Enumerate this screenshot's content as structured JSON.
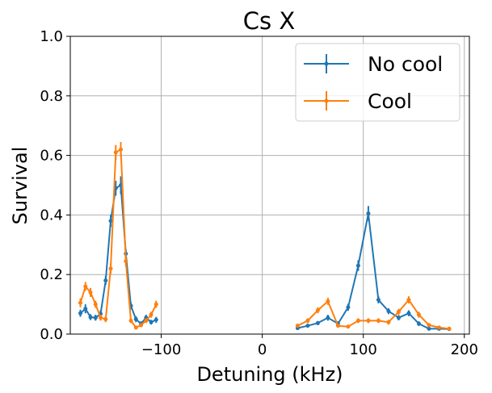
{
  "chart_data": {
    "type": "line",
    "title": "Cs X",
    "xlabel": "Detuning (kHz)",
    "ylabel": "Survival",
    "xlim": [
      -190,
      205
    ],
    "ylim": [
      0,
      1.0
    ],
    "xticks": [
      -100,
      0,
      100,
      200
    ],
    "xtick_labels": [
      "−100",
      "0",
      "100",
      "200"
    ],
    "yticks": [
      0.0,
      0.2,
      0.4,
      0.6,
      0.8,
      1.0
    ],
    "ytick_labels": [
      "0.0",
      "0.2",
      "0.4",
      "0.6",
      "0.8",
      "1.0"
    ],
    "grid": true,
    "legend_position": "top-right",
    "series": [
      {
        "name": "No cool",
        "color": "#1f77b4",
        "segments": [
          [
            {
              "x": -180,
              "y": 0.07,
              "err": 0.012
            },
            {
              "x": -175,
              "y": 0.085,
              "err": 0.015
            },
            {
              "x": -170,
              "y": 0.057,
              "err": 0.01
            },
            {
              "x": -165,
              "y": 0.055,
              "err": 0.01
            },
            {
              "x": -160,
              "y": 0.068,
              "err": 0.012
            },
            {
              "x": -155,
              "y": 0.18,
              "err": 0.015
            },
            {
              "x": -150,
              "y": 0.38,
              "err": 0.02
            },
            {
              "x": -145,
              "y": 0.49,
              "err": 0.025
            },
            {
              "x": -140,
              "y": 0.5,
              "err": 0.03
            },
            {
              "x": -135,
              "y": 0.27,
              "err": 0.015
            },
            {
              "x": -130,
              "y": 0.095,
              "err": 0.012
            },
            {
              "x": -125,
              "y": 0.05,
              "err": 0.01
            },
            {
              "x": -120,
              "y": 0.035,
              "err": 0.008
            },
            {
              "x": -115,
              "y": 0.055,
              "err": 0.01
            },
            {
              "x": -110,
              "y": 0.04,
              "err": 0.008
            },
            {
              "x": -105,
              "y": 0.048,
              "err": 0.01
            }
          ],
          [
            {
              "x": 35,
              "y": 0.02,
              "err": 0.006
            },
            {
              "x": 45,
              "y": 0.028,
              "err": 0.006
            },
            {
              "x": 55,
              "y": 0.037,
              "err": 0.007
            },
            {
              "x": 65,
              "y": 0.055,
              "err": 0.01
            },
            {
              "x": 75,
              "y": 0.035,
              "err": 0.008
            },
            {
              "x": 85,
              "y": 0.09,
              "err": 0.012
            },
            {
              "x": 95,
              "y": 0.23,
              "err": 0.018
            },
            {
              "x": 105,
              "y": 0.405,
              "err": 0.025
            },
            {
              "x": 115,
              "y": 0.115,
              "err": 0.012
            },
            {
              "x": 125,
              "y": 0.077,
              "err": 0.01
            },
            {
              "x": 135,
              "y": 0.055,
              "err": 0.009
            },
            {
              "x": 145,
              "y": 0.07,
              "err": 0.01
            },
            {
              "x": 155,
              "y": 0.035,
              "err": 0.008
            },
            {
              "x": 165,
              "y": 0.018,
              "err": 0.005
            },
            {
              "x": 175,
              "y": 0.018,
              "err": 0.005
            },
            {
              "x": 185,
              "y": 0.017,
              "err": 0.005
            }
          ]
        ]
      },
      {
        "name": "Cool",
        "color": "#ff7f0e",
        "segments": [
          [
            {
              "x": -180,
              "y": 0.105,
              "err": 0.015
            },
            {
              "x": -175,
              "y": 0.16,
              "err": 0.015
            },
            {
              "x": -170,
              "y": 0.14,
              "err": 0.015
            },
            {
              "x": -165,
              "y": 0.1,
              "err": 0.012
            },
            {
              "x": -160,
              "y": 0.055,
              "err": 0.01
            },
            {
              "x": -155,
              "y": 0.05,
              "err": 0.01
            },
            {
              "x": -150,
              "y": 0.22,
              "err": 0.018
            },
            {
              "x": -145,
              "y": 0.61,
              "err": 0.025
            },
            {
              "x": -140,
              "y": 0.62,
              "err": 0.025
            },
            {
              "x": -135,
              "y": 0.245,
              "err": 0.018
            },
            {
              "x": -130,
              "y": 0.045,
              "err": 0.008
            },
            {
              "x": -125,
              "y": 0.022,
              "err": 0.006
            },
            {
              "x": -120,
              "y": 0.03,
              "err": 0.007
            },
            {
              "x": -115,
              "y": 0.045,
              "err": 0.008
            },
            {
              "x": -110,
              "y": 0.065,
              "err": 0.01
            },
            {
              "x": -105,
              "y": 0.1,
              "err": 0.012
            }
          ],
          [
            {
              "x": 35,
              "y": 0.028,
              "err": 0.007
            },
            {
              "x": 45,
              "y": 0.045,
              "err": 0.008
            },
            {
              "x": 55,
              "y": 0.08,
              "err": 0.01
            },
            {
              "x": 65,
              "y": 0.11,
              "err": 0.012
            },
            {
              "x": 75,
              "y": 0.028,
              "err": 0.006
            },
            {
              "x": 85,
              "y": 0.025,
              "err": 0.006
            },
            {
              "x": 95,
              "y": 0.045,
              "err": 0.008
            },
            {
              "x": 105,
              "y": 0.045,
              "err": 0.008
            },
            {
              "x": 115,
              "y": 0.045,
              "err": 0.008
            },
            {
              "x": 125,
              "y": 0.04,
              "err": 0.008
            },
            {
              "x": 135,
              "y": 0.075,
              "err": 0.01
            },
            {
              "x": 145,
              "y": 0.115,
              "err": 0.012
            },
            {
              "x": 155,
              "y": 0.065,
              "err": 0.01
            },
            {
              "x": 165,
              "y": 0.03,
              "err": 0.007
            },
            {
              "x": 175,
              "y": 0.022,
              "err": 0.006
            },
            {
              "x": 185,
              "y": 0.018,
              "err": 0.005
            }
          ]
        ]
      }
    ]
  }
}
